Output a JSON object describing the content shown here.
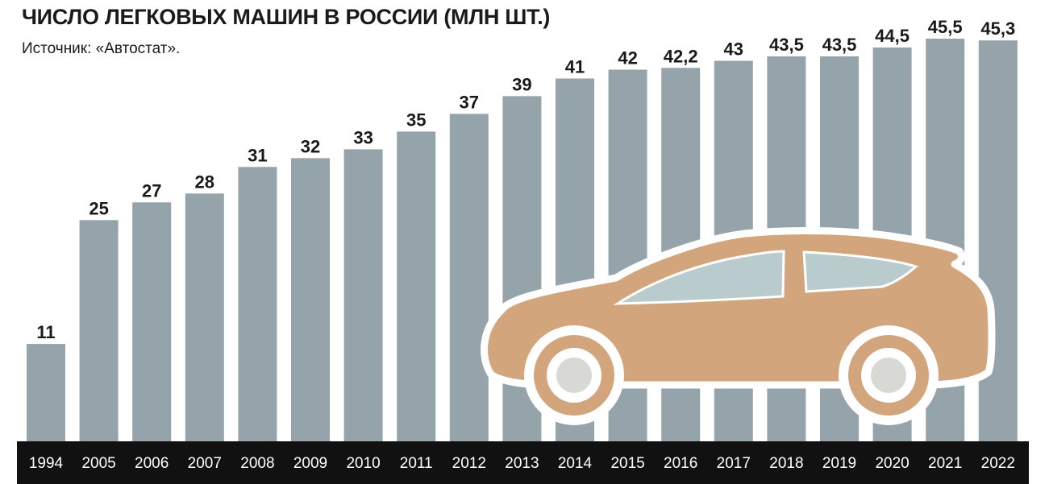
{
  "title": "ЧИСЛО ЛЕГКОВЫХ МАШИН В РОССИИ (МЛН ШТ.)",
  "source": "Источник: «Автостат».",
  "colors": {
    "bar": "#95a3aa",
    "axis_band": "#111111",
    "car_body": "#d3a57c",
    "car_window": "#b9cbcd",
    "wheel_outer": "#ffffff",
    "wheel_inner": "#d8d8d4"
  },
  "icons": [
    "car-illustration"
  ],
  "chart_data": {
    "type": "bar",
    "title": "ЧИСЛО ЛЕГКОВЫХ МАШИН В РОССИИ (МЛН ШТ.)",
    "xlabel": "",
    "ylabel": "",
    "categories": [
      "1994",
      "2005",
      "2006",
      "2007",
      "2008",
      "2009",
      "2010",
      "2011",
      "2012",
      "2013",
      "2014",
      "2015",
      "2016",
      "2017",
      "2018",
      "2019",
      "2020",
      "2021",
      "2022"
    ],
    "values": [
      11,
      25,
      27,
      28,
      31,
      32,
      33,
      35,
      37,
      39,
      41,
      42,
      42.2,
      43,
      43.5,
      43.5,
      44.5,
      45.5,
      45.3
    ],
    "value_labels": [
      "11",
      "25",
      "27",
      "28",
      "31",
      "32",
      "33",
      "35",
      "37",
      "39",
      "41",
      "42",
      "42,2",
      "43",
      "43,5",
      "43,5",
      "44,5",
      "45,5",
      "45,3"
    ],
    "ylim": [
      0,
      45.5
    ],
    "grid": false,
    "legend": "none"
  }
}
